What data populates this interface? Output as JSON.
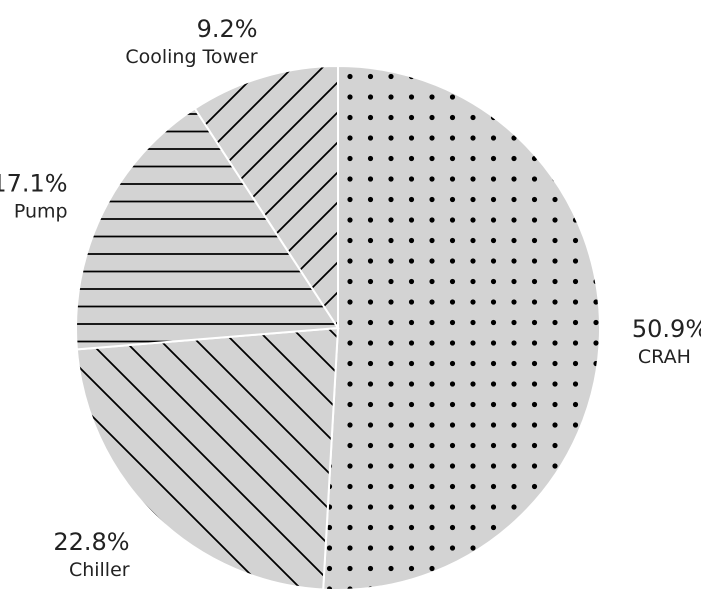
{
  "chart_data": {
    "type": "pie",
    "title": "",
    "slices": [
      {
        "label": "CRAH",
        "value": 50.9,
        "value_label": "50.9%",
        "pattern": "dots"
      },
      {
        "label": "Chiller",
        "value": 22.8,
        "value_label": "22.8%",
        "pattern": "diagonal"
      },
      {
        "label": "Pump",
        "value": 17.1,
        "value_label": "17.1%",
        "pattern": "horizontal"
      },
      {
        "label": "Cooling Tower",
        "value": 9.2,
        "value_label": "9.2%",
        "pattern": "reverse-diagonal"
      }
    ],
    "start_angle_deg": 90,
    "direction": "clockwise",
    "legend": "none",
    "colors": {
      "fill": "#d3d3d3",
      "edge": "#ffffff",
      "hatch": "#000000",
      "text": "#222222"
    }
  }
}
